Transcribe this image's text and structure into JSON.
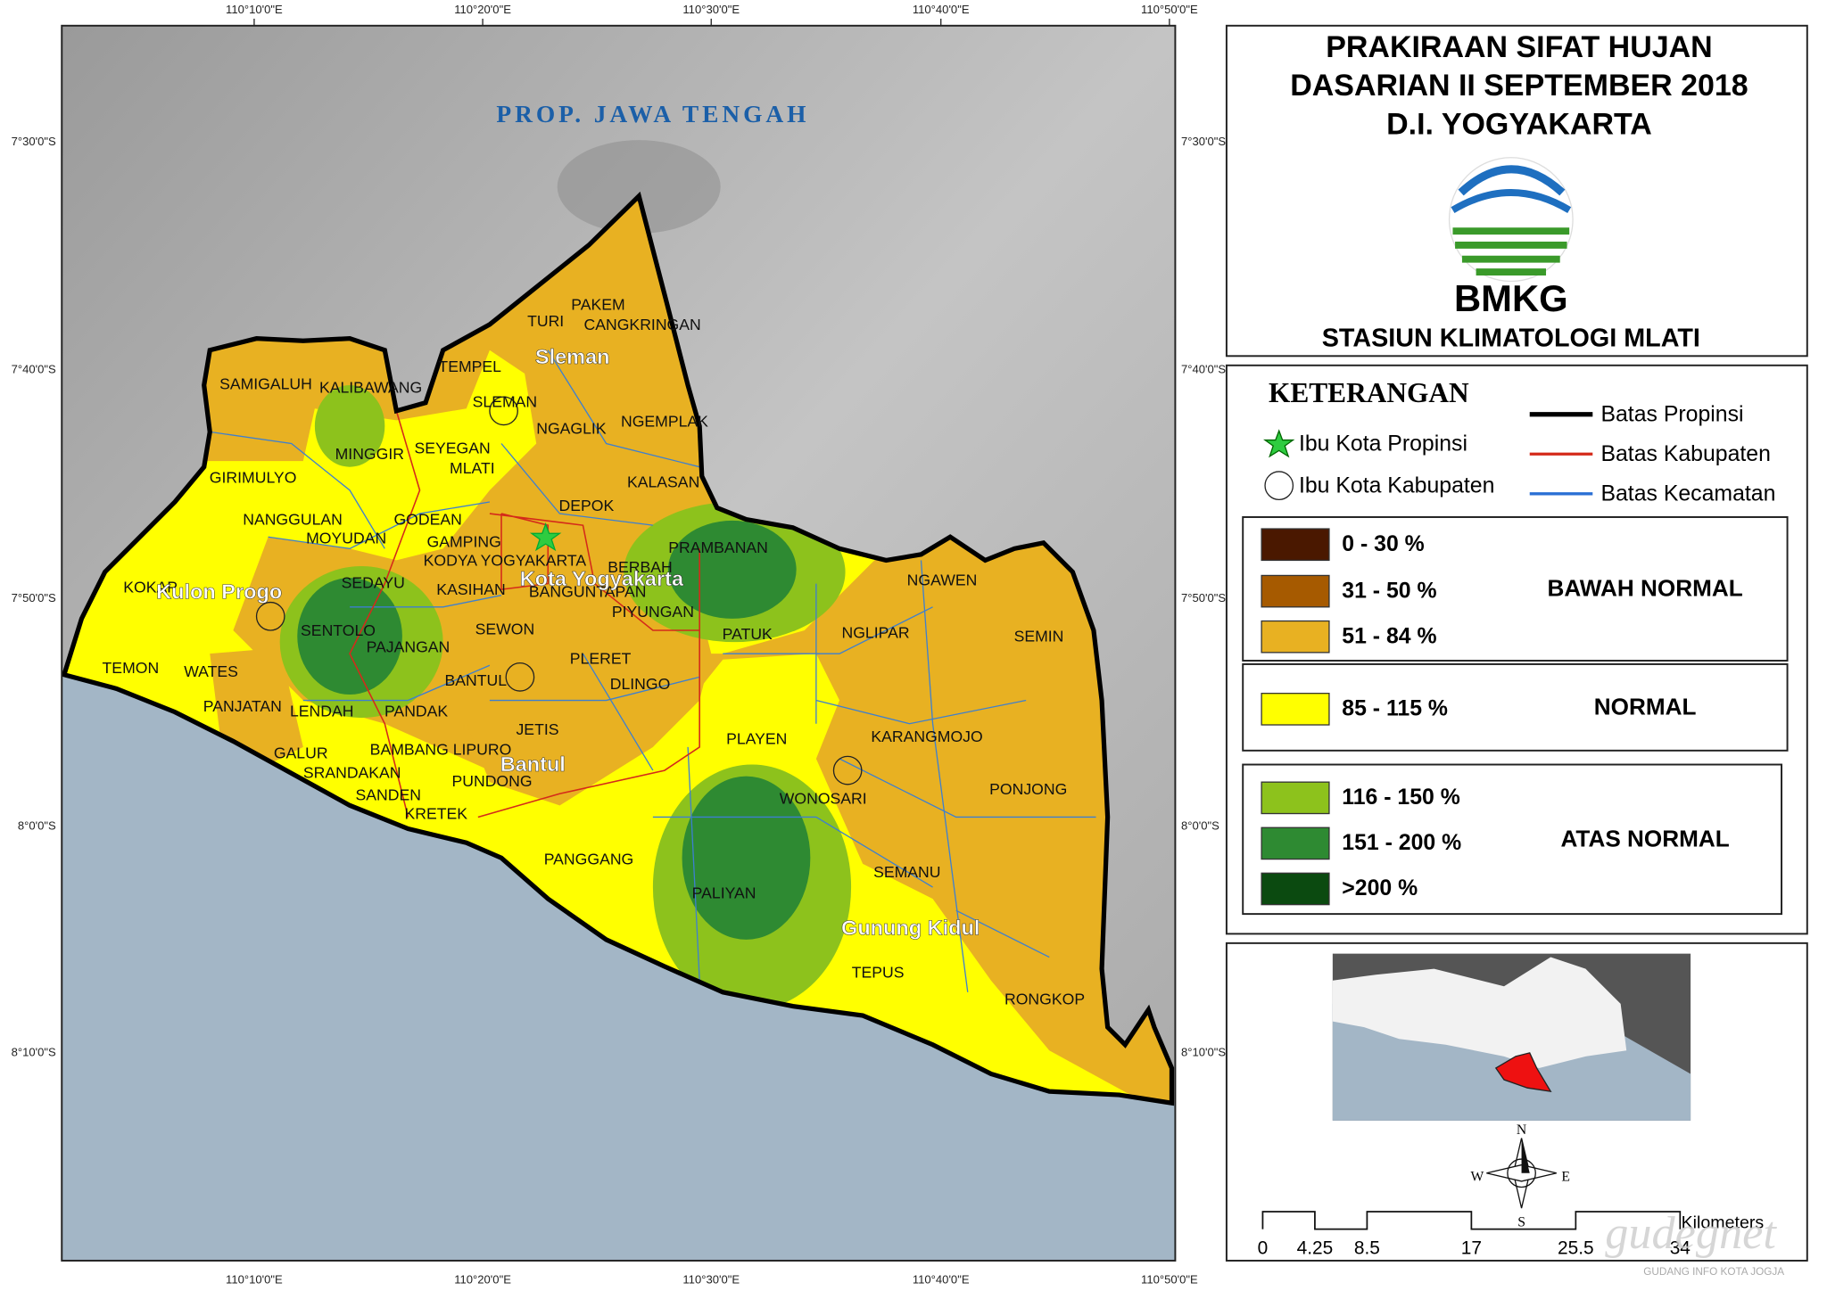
{
  "map_frame": {
    "lon_labels": [
      "110°10'0\"E",
      "110°20'0\"E",
      "110°30'0\"E",
      "110°40'0\"E",
      "110°50'0\"E"
    ],
    "lat_labels": [
      "7°30'0\"S",
      "7°40'0\"S",
      "7°50'0\"S",
      "8°0'0\"S",
      "8°10'0\"S"
    ]
  },
  "map": {
    "region_label": "PROP. JAWA TENGAH",
    "kabupaten_labels": [
      "Sleman",
      "Kota Yogyakarta",
      "Kulon Progo",
      "Bantul",
      "Gunung Kidul"
    ],
    "kecamatan_labels": [
      "SAMIGALUH",
      "KALIBAWANG",
      "TEMPEL",
      "SLEMAN",
      "TURI",
      "PAKEM",
      "CANGKRINGAN",
      "MINGGIR",
      "SEYEGAN",
      "MLATI",
      "NGAGLIK",
      "NGEMPLAK",
      "GIRIMULYO",
      "KALASAN",
      "DEPOK",
      "NANGGULAN",
      "GODEAN",
      "MOYUDAN",
      "GAMPING",
      "PRAMBANAN",
      "KODYA YOGYAKARTA",
      "BERBAH",
      "SEDAYU",
      "KASIHAN",
      "BANGUNTAPAN",
      "PIYUNGAN",
      "KOKAP",
      "NGAWEN",
      "SENTOLO",
      "PAJANGAN",
      "SEWON",
      "PATUK",
      "NGLIPAR",
      "SEMIN",
      "TEMON",
      "WATES",
      "PLERET",
      "BANTUL",
      "PANJATAN",
      "LENDAH",
      "PANDAK",
      "DLINGO",
      "JETIS",
      "PLAYEN",
      "KARANGMOJO",
      "GALUR",
      "BAMBANG LIPURO",
      "SRANDAKAN",
      "PUNDONG",
      "WONOSARI",
      "PONJONG",
      "SANDEN",
      "KRETEK",
      "PANGGANG",
      "SEMANU",
      "PALIYAN",
      "TEPUS",
      "RONGKOP"
    ]
  },
  "title": {
    "lines": [
      "PRAKIRAAN SIFAT HUJAN",
      "DASARIAN II SEPTEMBER 2018",
      "D.I. YOGYAKARTA"
    ],
    "agency": "BMKG",
    "station": "STASIUN KLIMATOLOGI MLATI"
  },
  "legend": {
    "heading": "KETERANGAN",
    "symbols": [
      "Ibu Kota Propinsi",
      "Ibu Kota Kabupaten"
    ],
    "boundaries": [
      {
        "label": "Batas Propinsi",
        "color": "#000000"
      },
      {
        "label": "Batas Kabupaten",
        "color": "#d42a1a"
      },
      {
        "label": "Batas Kecamatan",
        "color": "#2a6fd4"
      }
    ],
    "classes": [
      {
        "name": "BAWAH NORMAL",
        "items": [
          {
            "label": "0 - 30 %",
            "color": "#4a1800"
          },
          {
            "label": "31 - 50 %",
            "color": "#a65a00"
          },
          {
            "label": "51 - 84 %",
            "color": "#e8b122"
          }
        ]
      },
      {
        "name": "NORMAL",
        "items": [
          {
            "label": "85 - 115 %",
            "color": "#ffff00"
          }
        ]
      },
      {
        "name": "ATAS NORMAL",
        "items": [
          {
            "label": "116 - 150 %",
            "color": "#8dc21c"
          },
          {
            "label": "151 - 200 %",
            "color": "#2e8a32"
          },
          {
            "label": ">200 %",
            "color": "#0b4a10"
          }
        ]
      }
    ]
  },
  "scale_bar": {
    "ticks": [
      0,
      4.25,
      8.5,
      17,
      25.5,
      34
    ],
    "unit": "Kilometers"
  },
  "north_arrow": {
    "n": "N",
    "s": "S",
    "e": "E",
    "w": "W"
  },
  "watermark": {
    "name": "gudegnet",
    "tagline": "GUDANG INFO KOTA JOGJA"
  }
}
